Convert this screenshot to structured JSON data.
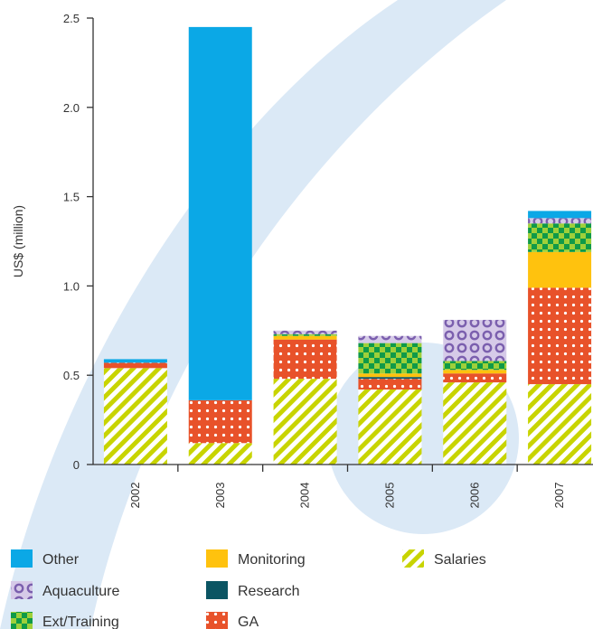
{
  "chart_data": {
    "type": "bar",
    "stacked": true,
    "ylabel": "US$ (million)",
    "xlabel": "",
    "ylim": [
      0,
      2.5
    ],
    "yticks": [
      "0",
      "0.5",
      "1.0",
      "1.5",
      "2.0",
      "2.5"
    ],
    "ytick_values": [
      0,
      0.5,
      1.0,
      1.5,
      2.0,
      2.5
    ],
    "categories": [
      "2002",
      "2003",
      "2004",
      "2005",
      "2006",
      "2007"
    ],
    "grid": false,
    "legend_position": "bottom",
    "series": [
      {
        "name": "Salaries",
        "key": "salaries",
        "color": "#c8d400",
        "pattern": "stripes",
        "values": [
          0.54,
          0.12,
          0.48,
          0.42,
          0.46,
          0.45
        ]
      },
      {
        "name": "GA",
        "key": "ga",
        "color": "#e8522a",
        "pattern": "dots",
        "values": [
          0.03,
          0.24,
          0.22,
          0.06,
          0.05,
          0.54
        ]
      },
      {
        "name": "Research",
        "key": "research",
        "color": "#0b5563",
        "pattern": "solid",
        "values": [
          0,
          0,
          0,
          0.01,
          0,
          0
        ]
      },
      {
        "name": "Monitoring",
        "key": "monitoring",
        "color": "#ffc20e",
        "pattern": "solid",
        "values": [
          0,
          0,
          0.02,
          0.02,
          0.02,
          0.2
        ]
      },
      {
        "name": "Ext/Training",
        "key": "ext_training",
        "color": "#7ab829",
        "pattern": "checker",
        "values": [
          0,
          0,
          0.01,
          0.17,
          0.05,
          0.16
        ]
      },
      {
        "name": "Aquaculture",
        "key": "aquaculture",
        "color": "#9b84c1",
        "pattern": "rings",
        "values": [
          0,
          0,
          0.02,
          0.04,
          0.23,
          0.03
        ]
      },
      {
        "name": "Other",
        "key": "other",
        "color": "#0ba8e6",
        "pattern": "solid",
        "values": [
          0.02,
          2.09,
          0,
          0,
          0,
          0.04
        ]
      }
    ],
    "legend": [
      [
        "other",
        "aquaculture",
        "ext_training"
      ],
      [
        "monitoring",
        "research",
        "ga"
      ],
      [
        "salaries"
      ]
    ]
  }
}
